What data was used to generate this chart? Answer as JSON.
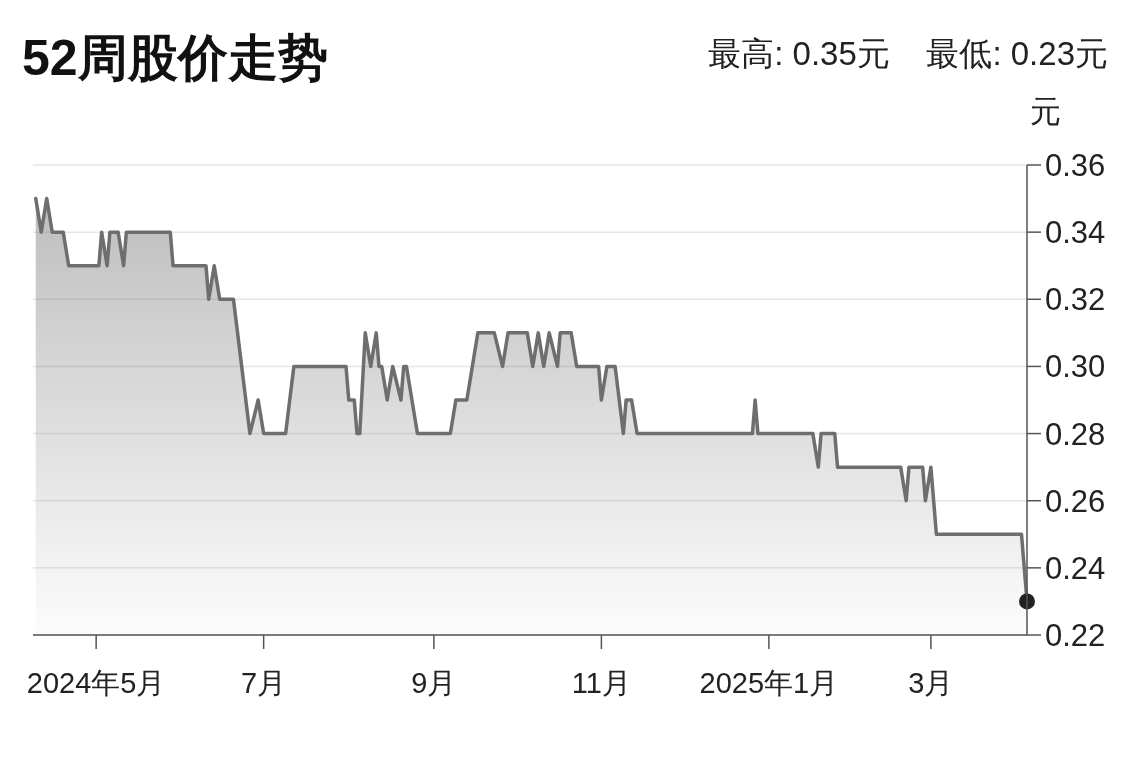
{
  "chart_data": {
    "type": "area",
    "title": "52周股价走势",
    "subtitle": "最高: 0.35元    最低: 0.23元",
    "ylabel": "元",
    "xlim": [
      "2024-04-08",
      "2025-04-05"
    ],
    "ylim": [
      0.22,
      0.36
    ],
    "yticks": [
      0.22,
      0.24,
      0.26,
      0.28,
      {
        "value": 0.3,
        "label": "0.30"
      },
      0.32,
      0.34,
      0.36
    ],
    "xticks": [
      {
        "value": "2024-05-01",
        "label": "2024年5月"
      },
      {
        "value": "2024-07-01",
        "label": "7月"
      },
      {
        "value": "2024-09-01",
        "label": "9月"
      },
      {
        "value": "2024-11-01",
        "label": "11月"
      },
      {
        "value": "2025-01-01",
        "label": "2025年1月"
      },
      {
        "value": "2025-03-01",
        "label": "3月"
      }
    ],
    "grid": "y",
    "series": [
      {
        "color": "#6e6e6e",
        "x": [
          "2024-04-09",
          "2024-04-11",
          "2024-04-13",
          "2024-04-15",
          "2024-04-19",
          "2024-04-21",
          "2024-05-02",
          "2024-05-03",
          "2024-05-05",
          "2024-05-06",
          "2024-05-09",
          "2024-05-11",
          "2024-05-12",
          "2024-05-28",
          "2024-05-29",
          "2024-06-10",
          "2024-06-11",
          "2024-06-13",
          "2024-06-15",
          "2024-06-20",
          "2024-06-26",
          "2024-06-29",
          "2024-07-01",
          "2024-07-09",
          "2024-07-12",
          "2024-07-31",
          "2024-08-01",
          "2024-08-03",
          "2024-08-04",
          "2024-08-05",
          "2024-08-07",
          "2024-08-09",
          "2024-08-11",
          "2024-08-12",
          "2024-08-13",
          "2024-08-15",
          "2024-08-17",
          "2024-08-20",
          "2024-08-21",
          "2024-08-22",
          "2024-08-26",
          "2024-09-07",
          "2024-09-09",
          "2024-09-13",
          "2024-09-17",
          "2024-09-23",
          "2024-09-26",
          "2024-09-28",
          "2024-10-05",
          "2024-10-07",
          "2024-10-09",
          "2024-10-11",
          "2024-10-13",
          "2024-10-16",
          "2024-10-17",
          "2024-10-21",
          "2024-10-23",
          "2024-10-31",
          "2024-11-01",
          "2024-11-03",
          "2024-11-06",
          "2024-11-09",
          "2024-11-10",
          "2024-11-12",
          "2024-11-14",
          "2024-12-26",
          "2024-12-27",
          "2024-12-28",
          "2025-01-17",
          "2025-01-19",
          "2025-01-20",
          "2025-01-25",
          "2025-01-26",
          "2025-02-18",
          "2025-02-20",
          "2025-02-21",
          "2025-02-26",
          "2025-02-27",
          "2025-03-01",
          "2025-03-03",
          "2025-04-03",
          "2025-04-05"
        ],
        "values": [
          0.35,
          0.34,
          0.35,
          0.34,
          0.34,
          0.33,
          0.33,
          0.34,
          0.33,
          0.34,
          0.34,
          0.33,
          0.34,
          0.34,
          0.33,
          0.33,
          0.32,
          0.33,
          0.32,
          0.32,
          0.28,
          0.29,
          0.28,
          0.28,
          0.3,
          0.3,
          0.29,
          0.29,
          0.28,
          0.28,
          0.31,
          0.3,
          0.31,
          0.3,
          0.3,
          0.29,
          0.3,
          0.29,
          0.3,
          0.3,
          0.28,
          0.28,
          0.29,
          0.29,
          0.31,
          0.31,
          0.3,
          0.31,
          0.31,
          0.3,
          0.31,
          0.3,
          0.31,
          0.3,
          0.31,
          0.31,
          0.3,
          0.3,
          0.29,
          0.3,
          0.3,
          0.28,
          0.29,
          0.29,
          0.28,
          0.28,
          0.29,
          0.28,
          0.28,
          0.27,
          0.28,
          0.28,
          0.27,
          0.27,
          0.26,
          0.27,
          0.27,
          0.26,
          0.27,
          0.25,
          0.25,
          0.23
        ]
      },
      {
        "type": "scatter",
        "color": "#222222",
        "marker": "circle",
        "x": [
          "2025-04-05"
        ],
        "values": [
          0.23
        ]
      }
    ]
  }
}
